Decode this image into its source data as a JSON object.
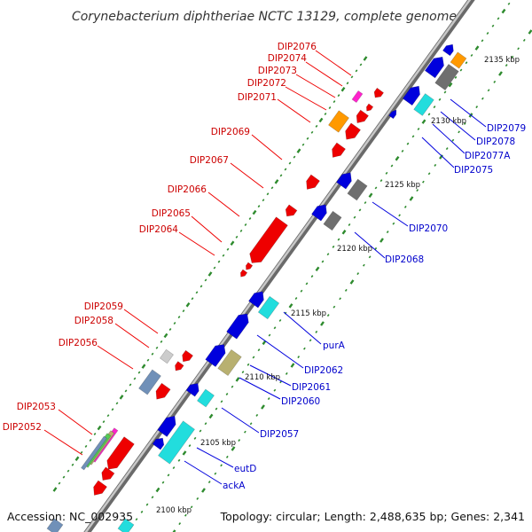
{
  "title": "Corynebacterium diphtheriae NCTC 13129, complete genome",
  "accession": "Accession: NC_002935",
  "topology": "Topology: circular; Length: 2,488,635 bp; Genes: 2,341",
  "colors": {
    "backbone": "#9a9a9a",
    "tick_green": "#2e8b2e",
    "label_red": "#cc0000",
    "label_blue": "#0000cc",
    "red": "#ee0000",
    "blue": "#0000dd",
    "gray": "#6f6f6f",
    "cyan": "#22dddd",
    "orange": "#ff9900",
    "magenta": "#ff22cc",
    "olive": "#b8b070",
    "steelblue": "#7090b8",
    "lightgray": "#cccccc"
  },
  "kbp_ticks": [
    "2100 kbp",
    "2105 kbp",
    "2110 kbp",
    "2115 kbp",
    "2120 kbp",
    "2125 kbp",
    "2130 kbp",
    "2135 kbp"
  ],
  "left_labels": [
    "DIP2076",
    "DIP2074",
    "DIP2073",
    "DIP2072",
    "DIP2071",
    "DIP2069",
    "DIP2067",
    "DIP2066",
    "DIP2065",
    "DIP2064",
    "DIP2059",
    "DIP2058",
    "DIP2056",
    "DIP2053",
    "DIP2052"
  ],
  "right_labels": [
    "DIP2079",
    "DIP2078",
    "DIP2077A",
    "DIP2075",
    "DIP2070",
    "DIP2068",
    "purA",
    "DIP2062",
    "DIP2061",
    "DIP2060",
    "DIP2057",
    "eutD",
    "ackA"
  ]
}
